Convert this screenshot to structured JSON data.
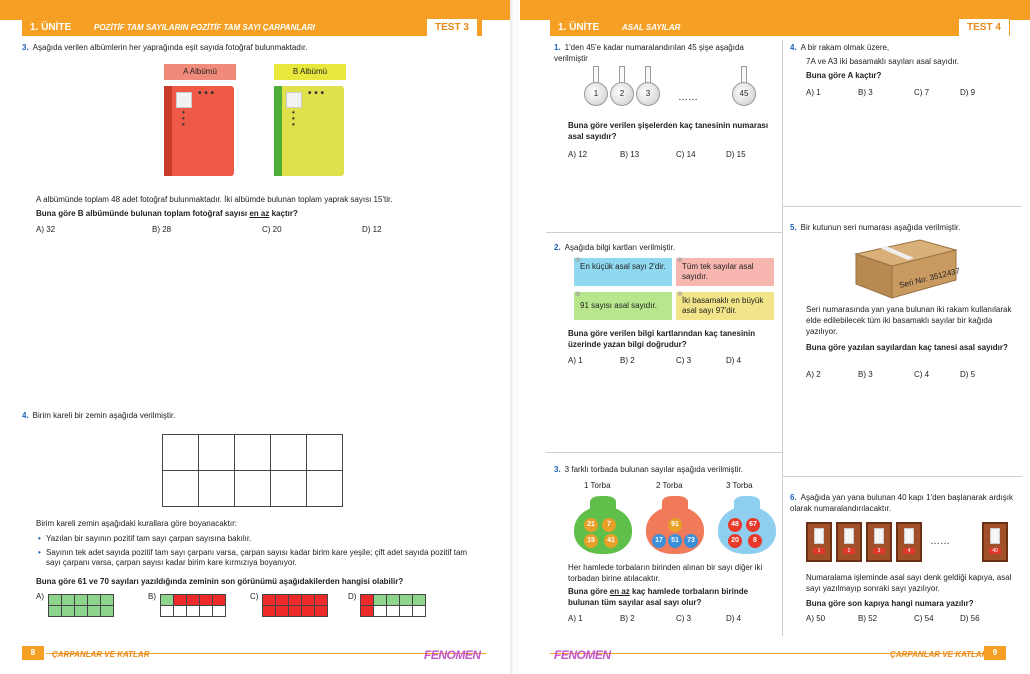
{
  "left": {
    "header": {
      "unit": "1. ÜNİTE",
      "topic": "POZİTİF TAM SAYILARIN POZİTİF TAM SAYI ÇARPANLARI",
      "test": "TEST 3"
    },
    "q3": {
      "num": "3.",
      "text": "Aşağıda verilen albümlerin her yaprağında eşit sayıda fotoğraf bulunmaktadır.",
      "albumA": "A Albümü",
      "albumB": "B Albümü",
      "info": "A albümünde toplam 48 adet fotoğraf bulunmaktadır. İki albümde bulunan toplam yaprak sayısı 15'tir.",
      "ask_pre": "Buna göre B albümünde bulunan toplam fotoğraf sayısı ",
      "ask_u": "en az",
      "ask_post": " kaçtır?",
      "options": [
        "A) 32",
        "B) 28",
        "C) 20",
        "D) 12"
      ]
    },
    "q4": {
      "num": "4.",
      "text": "Birim kareli bir zemin aşağıda verilmiştir.",
      "rules": "Birim kareli zemin aşağıdaki kurallara göre boyanacaktır:",
      "bullet1": "Yazılan bir sayının pozitif tam sayı çarpan sayısına bakılır.",
      "bullet2": "Sayının tek adet sayıda pozitif tam sayı çarpanı varsa, çarpan sayısı kadar birim kare yeşile; çift adet sayıda pozitif tam sayı çarpanı varsa, çarpan sayısı kadar birim kare kırmızıya boyanıyor.",
      "ask": "Buna göre 61 ve 70 sayıları yazıldığında zeminin son görünümü aşağıdakilerden hangisi olabilir?",
      "labels": [
        "A)",
        "B)",
        "C)",
        "D)"
      ]
    },
    "footer": {
      "page": "8",
      "chapter": "ÇARPANLAR VE KATLAR",
      "brand": "FENOMEN"
    }
  },
  "right": {
    "header": {
      "unit": "1. ÜNİTE",
      "topic": "ASAL SAYILAR",
      "test": "TEST 4"
    },
    "q1": {
      "num": "1.",
      "text": "1'den 45'e kadar numaralandırılan 45 şişe aşağıda verilmiştir",
      "flasks": [
        "1",
        "2",
        "3",
        "45"
      ],
      "ellipsis": "……",
      "ask": "Buna göre verilen şişelerden kaç tanesinin numarası asal sayıdır?",
      "options": [
        "A) 12",
        "B) 13",
        "C) 14",
        "D) 15"
      ]
    },
    "q2": {
      "num": "2.",
      "text": "Aşağıda bilgi kartları verilmiştir.",
      "card1": "En küçük asal sayı 2'dir.",
      "card2": "Tüm tek sayılar asal sayıdır.",
      "card3": "91 sayısı asal sayıdır.",
      "card4": "İki basamaklı en büyük asal sayı 97'dir.",
      "ask": "Buna göre verilen bilgi kartlarından kaç tanesinin üzerinde yazan bilgi doğrudur?",
      "options": [
        "A) 1",
        "B) 2",
        "C) 3",
        "D) 4"
      ]
    },
    "q3": {
      "num": "3.",
      "text": "3 farklı torbada bulunan sayılar aşağıda verilmiştir.",
      "bags": [
        "1 Torba",
        "2 Torba",
        "3 Torba"
      ],
      "bag1": [
        "21",
        "7",
        "15",
        "41"
      ],
      "bag2": [
        "91",
        "17",
        "51",
        "73"
      ],
      "bag3": [
        "48",
        "67",
        "20",
        "8"
      ],
      "info": "Her hamlede torbaların birinden alınan bir sayı diğer iki torbadan birine atılacaktır.",
      "ask_pre": "Buna göre ",
      "ask_u": "en az",
      "ask_post": " kaç hamlede torbaların birinde bulunan tüm sayılar asal sayı olur?",
      "options": [
        "A) 1",
        "B) 2",
        "C) 3",
        "D) 4"
      ]
    },
    "q4": {
      "num": "4.",
      "text": "A bir rakam olmak üzere,",
      "line2": "7A ve A3 iki basamaklı sayıları asal sayıdır.",
      "ask": "Buna göre A kaçtır?",
      "options": [
        "A) 1",
        "B) 3",
        "C) 7",
        "D) 9"
      ]
    },
    "q5": {
      "num": "5.",
      "text": "Bir kutunun seri numarası aşağıda verilmiştir.",
      "serial": "Seri No: 3512437",
      "info": "Seri numarasında yan yana bulunan iki rakam kullanılarak elde edilebilecek tüm iki basamaklı sayılar bir kağıda yazılıyor.",
      "ask": "Buna göre yazılan sayılardan kaç tanesi asal sayıdır?",
      "options": [
        "A) 2",
        "B) 3",
        "C) 4",
        "D) 5"
      ]
    },
    "q6": {
      "num": "6.",
      "text": "Aşağıda yan yana bulunan 40 kapı 1'den başlanarak ardışık olarak numaralandırılacaktır.",
      "doors": [
        "1",
        "2",
        "3",
        "4",
        "40"
      ],
      "ellipsis": "……",
      "info": "Numaralama işleminde asal sayı denk geldiği kapıya, asal sayı yazılmayıp sonraki sayı yazılıyor.",
      "ask": "Buna göre son kapıya hangi numara yazılır?",
      "options": [
        "A) 50",
        "B) 52",
        "C) 54",
        "D) 56"
      ]
    },
    "footer": {
      "page": "9",
      "chapter": "ÇARPANLAR VE KATLAR",
      "brand": "FENOMEN"
    }
  }
}
